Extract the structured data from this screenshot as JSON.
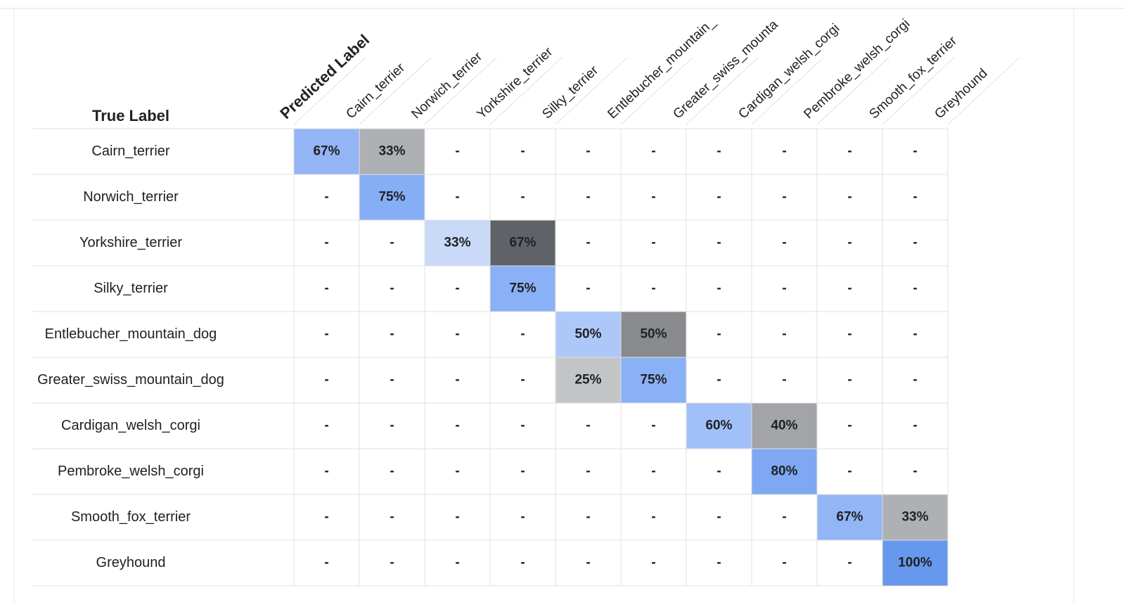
{
  "header": {
    "true_label": "True Label",
    "predicted_label": "Predicted Label"
  },
  "columns": [
    "Cairn_terrier",
    "Norwich_terrier",
    "Yorkshire_terrier",
    "Silky_terrier",
    "Entlebucher_mountain_",
    "Greater_swiss_mounta",
    "Cardigan_welsh_corgi",
    "Pembroke_welsh_corgi",
    "Smooth_fox_terrier",
    "Greyhound"
  ],
  "rows": [
    {
      "label": "Cairn_terrier",
      "cells": [
        {
          "text": "67%",
          "color": "#93b5f5"
        },
        {
          "text": "33%",
          "color": "#aeb0b3"
        },
        {
          "text": "-"
        },
        {
          "text": "-"
        },
        {
          "text": "-"
        },
        {
          "text": "-"
        },
        {
          "text": "-"
        },
        {
          "text": "-"
        },
        {
          "text": "-"
        },
        {
          "text": "-"
        }
      ]
    },
    {
      "label": "Norwich_terrier",
      "cells": [
        {
          "text": "-"
        },
        {
          "text": "75%",
          "color": "#86aef5"
        },
        {
          "text": "-"
        },
        {
          "text": "-"
        },
        {
          "text": "-"
        },
        {
          "text": "-"
        },
        {
          "text": "-"
        },
        {
          "text": "-"
        },
        {
          "text": "-"
        },
        {
          "text": "-"
        }
      ]
    },
    {
      "label": "Yorkshire_terrier",
      "cells": [
        {
          "text": "-"
        },
        {
          "text": "-"
        },
        {
          "text": "33%",
          "color": "#c9d9f8"
        },
        {
          "text": "67%",
          "color": "#5f6368"
        },
        {
          "text": "-"
        },
        {
          "text": "-"
        },
        {
          "text": "-"
        },
        {
          "text": "-"
        },
        {
          "text": "-"
        },
        {
          "text": "-"
        }
      ]
    },
    {
      "label": "Silky_terrier",
      "cells": [
        {
          "text": "-"
        },
        {
          "text": "-"
        },
        {
          "text": "-"
        },
        {
          "text": "75%",
          "color": "#8ab0f5"
        },
        {
          "text": "-"
        },
        {
          "text": "-"
        },
        {
          "text": "-"
        },
        {
          "text": "-"
        },
        {
          "text": "-"
        },
        {
          "text": "-"
        }
      ]
    },
    {
      "label": "Entlebucher_mountain_dog",
      "cells": [
        {
          "text": "-"
        },
        {
          "text": "-"
        },
        {
          "text": "-"
        },
        {
          "text": "-"
        },
        {
          "text": "50%",
          "color": "#adc8f8"
        },
        {
          "text": "50%",
          "color": "#898b8e"
        },
        {
          "text": "-"
        },
        {
          "text": "-"
        },
        {
          "text": "-"
        },
        {
          "text": "-"
        }
      ]
    },
    {
      "label": "Greater_swiss_mountain_dog",
      "cells": [
        {
          "text": "-"
        },
        {
          "text": "-"
        },
        {
          "text": "-"
        },
        {
          "text": "-"
        },
        {
          "text": "25%",
          "color": "#c3c4c6"
        },
        {
          "text": "75%",
          "color": "#8ab0f5"
        },
        {
          "text": "-"
        },
        {
          "text": "-"
        },
        {
          "text": "-"
        },
        {
          "text": "-"
        }
      ]
    },
    {
      "label": "Cardigan_welsh_corgi",
      "cells": [
        {
          "text": "-"
        },
        {
          "text": "-"
        },
        {
          "text": "-"
        },
        {
          "text": "-"
        },
        {
          "text": "-"
        },
        {
          "text": "-"
        },
        {
          "text": "60%",
          "color": "#a2c0f8"
        },
        {
          "text": "40%",
          "color": "#a3a4a7"
        },
        {
          "text": "-"
        },
        {
          "text": "-"
        }
      ]
    },
    {
      "label": "Pembroke_welsh_corgi",
      "cells": [
        {
          "text": "-"
        },
        {
          "text": "-"
        },
        {
          "text": "-"
        },
        {
          "text": "-"
        },
        {
          "text": "-"
        },
        {
          "text": "-"
        },
        {
          "text": "-"
        },
        {
          "text": "80%",
          "color": "#7ea8f4"
        },
        {
          "text": "-"
        },
        {
          "text": "-"
        }
      ]
    },
    {
      "label": "Smooth_fox_terrier",
      "cells": [
        {
          "text": "-"
        },
        {
          "text": "-"
        },
        {
          "text": "-"
        },
        {
          "text": "-"
        },
        {
          "text": "-"
        },
        {
          "text": "-"
        },
        {
          "text": "-"
        },
        {
          "text": "-"
        },
        {
          "text": "67%",
          "color": "#93b5f5"
        },
        {
          "text": "33%",
          "color": "#aeb0b3"
        }
      ]
    },
    {
      "label": "Greyhound",
      "cells": [
        {
          "text": "-"
        },
        {
          "text": "-"
        },
        {
          "text": "-"
        },
        {
          "text": "-"
        },
        {
          "text": "-"
        },
        {
          "text": "-"
        },
        {
          "text": "-"
        },
        {
          "text": "-"
        },
        {
          "text": "-"
        },
        {
          "text": "100%",
          "color": "#6699ee"
        }
      ]
    }
  ]
}
